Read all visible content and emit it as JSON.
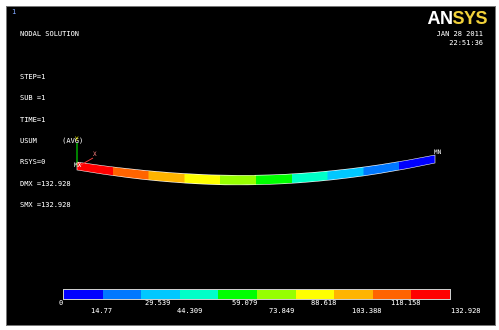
{
  "window_number": "1",
  "info_lines": [
    "NODAL SOLUTION",
    "",
    "STEP=1",
    "SUB =1",
    "TIME=1",
    "USUM      (AVG)",
    "RSYS=0",
    "DMX =132.928",
    "SMX =132.928"
  ],
  "logo": {
    "main": "AN",
    "accent": "SYS"
  },
  "date": "JAN 28 2011",
  "time": "22:51:36",
  "markers": {
    "y_axis": "Y",
    "x_axis": "X",
    "min_label": "MX",
    "max_label": "MN"
  },
  "legend": {
    "colors": [
      "#0000ff",
      "#0078ff",
      "#00c8ff",
      "#00ffc8",
      "#00ff00",
      "#96ff00",
      "#ffff00",
      "#ffb400",
      "#ff6400",
      "#ff0000"
    ],
    "labels_top": [
      "0",
      "29.539",
      "59.079",
      "88.618",
      "118.158"
    ],
    "labels_bottom": [
      "14.77",
      "44.309",
      "73.849",
      "103.388",
      "132.928"
    ]
  },
  "beam_colors": [
    "#ff0000",
    "#ff6400",
    "#ffb400",
    "#ffff00",
    "#96ff00",
    "#00ff00",
    "#00ffc8",
    "#00c8ff",
    "#0078ff",
    "#0000ff"
  ]
}
